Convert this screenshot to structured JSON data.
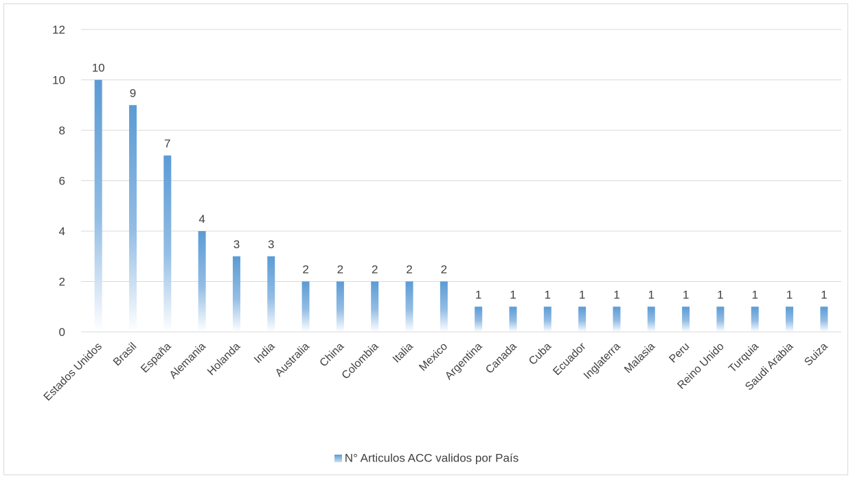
{
  "chart_data": {
    "type": "bar",
    "title": "",
    "xlabel": "",
    "ylabel": "",
    "categories": [
      "Estados Unidos",
      "Brasil",
      "España",
      "Alemania",
      "Holanda",
      "India",
      "Australia",
      "China",
      "Colombia",
      "Italia",
      "Mexico",
      "Argentina",
      "Canada",
      "Cuba",
      "Ecuador",
      "Inglaterra",
      "Malasia",
      "Peru",
      "Reino Unido",
      "Turquia",
      "Saudi Arabia",
      "Suiza"
    ],
    "series": [
      {
        "name": "N° Articulos ACC validos por País",
        "values": [
          10,
          9,
          7,
          4,
          3,
          3,
          2,
          2,
          2,
          2,
          2,
          1,
          1,
          1,
          1,
          1,
          1,
          1,
          1,
          1,
          1,
          1
        ],
        "color": "#5b9bd5"
      }
    ],
    "ylim": [
      0,
      12
    ],
    "yticks": [
      "0",
      "2",
      "4",
      "6",
      "8",
      "10",
      "12"
    ],
    "grid": true,
    "data_labels": true,
    "legend_position": "bottom"
  }
}
